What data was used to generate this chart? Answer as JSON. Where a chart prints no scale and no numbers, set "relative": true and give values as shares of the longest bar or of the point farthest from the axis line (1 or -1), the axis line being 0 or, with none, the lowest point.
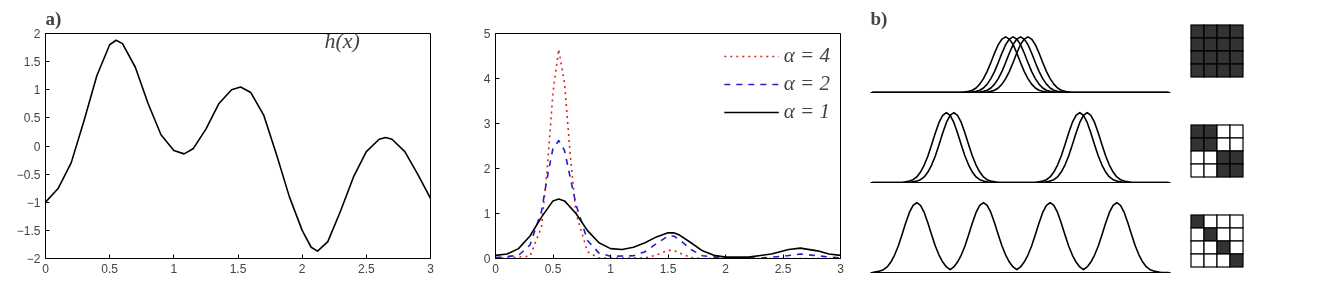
{
  "chart_data": [
    {
      "type": "line",
      "title": "a)",
      "annotations": [
        "h(x)"
      ],
      "xlim": [
        0,
        3
      ],
      "ylim": [
        -2,
        2
      ],
      "xticks": [
        0,
        0.5,
        1,
        1.5,
        2,
        2.5,
        3
      ],
      "yticks": [
        {
          "value": -2,
          "label": "−2"
        },
        {
          "value": -1.5,
          "label": "−1.5"
        },
        {
          "value": -1,
          "label": "−1"
        },
        {
          "value": -0.5,
          "label": "−0.5"
        },
        0,
        0.5,
        1,
        1.5,
        2
      ],
      "grid": false,
      "legend": false,
      "series": [
        {
          "color": "#000000",
          "line_style": "solid",
          "x": [
            0,
            0.1,
            0.2,
            0.3,
            0.4,
            0.5,
            0.55,
            0.6,
            0.7,
            0.8,
            0.9,
            1.0,
            1.08,
            1.15,
            1.25,
            1.35,
            1.45,
            1.52,
            1.6,
            1.7,
            1.8,
            1.9,
            2.0,
            2.07,
            2.12,
            2.2,
            2.3,
            2.4,
            2.5,
            2.6,
            2.65,
            2.7,
            2.8,
            2.9,
            3.0
          ],
          "values": [
            -1,
            -0.75,
            -0.3,
            0.45,
            1.25,
            1.8,
            1.88,
            1.82,
            1.4,
            0.75,
            0.2,
            -0.08,
            -0.14,
            -0.05,
            0.3,
            0.75,
            1.0,
            1.05,
            0.95,
            0.55,
            -0.15,
            -0.9,
            -1.5,
            -1.8,
            -1.87,
            -1.7,
            -1.15,
            -0.55,
            -0.1,
            0.12,
            0.15,
            0.12,
            -0.1,
            -0.5,
            -0.93
          ]
        }
      ]
    },
    {
      "type": "line",
      "xlim": [
        0,
        3
      ],
      "ylim": [
        0,
        5
      ],
      "xticks": [
        0,
        0.5,
        1,
        1.5,
        2,
        2.5,
        3
      ],
      "yticks": [
        0,
        1,
        2,
        3,
        4,
        5
      ],
      "grid": false,
      "legend": "top right",
      "series": [
        {
          "name": "α = 4",
          "color": "#d62728",
          "line_style": "dotted",
          "x": [
            0,
            0.3,
            0.4,
            0.45,
            0.5,
            0.55,
            0.6,
            0.65,
            0.7,
            0.8,
            0.9,
            1.3,
            1.4,
            1.5,
            1.55,
            1.6,
            1.7,
            1.8,
            3
          ],
          "values": [
            0,
            0.05,
            0.7,
            2.0,
            3.7,
            4.65,
            3.9,
            2.3,
            1.0,
            0.15,
            0.01,
            0.01,
            0.08,
            0.18,
            0.18,
            0.12,
            0.02,
            0,
            0
          ]
        },
        {
          "name": "α = 2",
          "color": "#1f1fcc",
          "line_style": "dashed",
          "x": [
            0,
            0.2,
            0.3,
            0.4,
            0.45,
            0.5,
            0.55,
            0.6,
            0.65,
            0.7,
            0.8,
            0.9,
            1.0,
            1.2,
            1.3,
            1.4,
            1.5,
            1.55,
            1.6,
            1.7,
            1.8,
            2.0,
            2.3,
            2.5,
            2.65,
            2.8,
            3
          ],
          "values": [
            0.02,
            0.07,
            0.3,
            1.05,
            1.8,
            2.45,
            2.62,
            2.4,
            1.8,
            1.2,
            0.4,
            0.12,
            0.05,
            0.06,
            0.15,
            0.33,
            0.5,
            0.5,
            0.42,
            0.2,
            0.06,
            0.01,
            0.01,
            0.05,
            0.1,
            0.06,
            0.01
          ]
        },
        {
          "name": "α = 1",
          "color": "#000000",
          "line_style": "solid",
          "x": [
            0,
            0.1,
            0.2,
            0.3,
            0.4,
            0.5,
            0.55,
            0.6,
            0.7,
            0.8,
            0.9,
            1.0,
            1.1,
            1.2,
            1.3,
            1.4,
            1.5,
            1.55,
            1.6,
            1.7,
            1.8,
            1.9,
            2.0,
            2.2,
            2.4,
            2.55,
            2.65,
            2.8,
            2.9,
            3
          ],
          "values": [
            0.07,
            0.1,
            0.22,
            0.5,
            0.92,
            1.28,
            1.32,
            1.28,
            1.0,
            0.62,
            0.35,
            0.22,
            0.2,
            0.25,
            0.35,
            0.48,
            0.57,
            0.57,
            0.52,
            0.35,
            0.17,
            0.07,
            0.03,
            0.03,
            0.1,
            0.2,
            0.23,
            0.17,
            0.1,
            0.07
          ]
        }
      ]
    },
    {
      "type": "line",
      "title": "b)",
      "relative": true,
      "grid": false,
      "legend": false,
      "categories": [
        null,
        null,
        null,
        null,
        null,
        null,
        null,
        null,
        null,
        null,
        null,
        null,
        null,
        null,
        null,
        null,
        null,
        null,
        null,
        null,
        null,
        null,
        null,
        null,
        null,
        null,
        null,
        null,
        null,
        null,
        null,
        null,
        null,
        null,
        null,
        null,
        null,
        null,
        null,
        null,
        null,
        null,
        null,
        null,
        null,
        null,
        null,
        null,
        null,
        null,
        null,
        null,
        null,
        null,
        null,
        null,
        null,
        null,
        null,
        null,
        null,
        null,
        null,
        null,
        null,
        null,
        null,
        null,
        null,
        null,
        null,
        null,
        null,
        null,
        null,
        null,
        null,
        null,
        null,
        null,
        null
      ],
      "series": [
        {
          "color": "#000000",
          "line_style": "solid",
          "values": [
            0,
            0,
            0,
            0,
            0,
            0,
            0,
            0,
            0,
            0,
            0,
            0,
            0,
            0,
            0,
            0,
            0,
            0,
            0,
            0,
            0,
            0,
            0,
            0,
            0,
            0.01,
            0.02,
            0.04,
            0.08,
            0.15,
            0.25,
            0.38,
            0.54,
            0.71,
            0.86,
            0.96,
            1,
            0.96,
            0.86,
            0.71,
            0.54,
            0.38,
            0.25,
            0.15,
            0.08,
            0.04,
            0.02,
            0.01,
            0,
            0,
            0,
            0,
            0,
            0,
            0,
            0,
            0,
            0,
            0,
            0,
            0,
            0,
            0,
            0,
            0,
            0,
            0,
            0,
            0,
            0,
            0,
            0,
            0,
            0,
            0,
            0,
            0,
            0,
            0,
            0,
            0
          ]
        },
        {
          "color": "#000000",
          "line_style": "solid",
          "values": [
            0,
            0,
            0,
            0,
            0,
            0,
            0,
            0,
            0,
            0,
            0,
            0,
            0,
            0,
            0,
            0,
            0,
            0,
            0,
            0,
            0,
            0,
            0,
            0,
            0,
            0,
            0,
            0.01,
            0.02,
            0.04,
            0.08,
            0.15,
            0.25,
            0.38,
            0.54,
            0.71,
            0.86,
            0.96,
            1,
            0.96,
            0.86,
            0.71,
            0.54,
            0.38,
            0.25,
            0.15,
            0.08,
            0.04,
            0.02,
            0.01,
            0,
            0,
            0,
            0,
            0,
            0,
            0,
            0,
            0,
            0,
            0,
            0,
            0,
            0,
            0,
            0,
            0,
            0,
            0,
            0,
            0,
            0,
            0,
            0,
            0,
            0,
            0,
            0,
            0,
            0,
            0
          ]
        },
        {
          "color": "#000000",
          "line_style": "solid",
          "values": [
            0,
            0,
            0,
            0,
            0,
            0,
            0,
            0,
            0,
            0,
            0,
            0,
            0,
            0,
            0,
            0,
            0,
            0,
            0,
            0,
            0,
            0,
            0,
            0,
            0,
            0,
            0,
            0,
            0,
            0.01,
            0.02,
            0.04,
            0.08,
            0.15,
            0.25,
            0.38,
            0.54,
            0.71,
            0.86,
            0.96,
            1,
            0.96,
            0.86,
            0.71,
            0.54,
            0.38,
            0.25,
            0.15,
            0.08,
            0.04,
            0.02,
            0.01,
            0,
            0,
            0,
            0,
            0,
            0,
            0,
            0,
            0,
            0,
            0,
            0,
            0,
            0,
            0,
            0,
            0,
            0,
            0,
            0,
            0,
            0,
            0,
            0,
            0,
            0,
            0,
            0,
            0
          ]
        },
        {
          "color": "#000000",
          "line_style": "solid",
          "values": [
            0,
            0,
            0,
            0,
            0,
            0,
            0,
            0,
            0,
            0,
            0,
            0,
            0,
            0,
            0,
            0,
            0,
            0,
            0,
            0,
            0,
            0,
            0,
            0,
            0,
            0,
            0,
            0,
            0,
            0,
            0,
            0.01,
            0.02,
            0.04,
            0.08,
            0.15,
            0.25,
            0.38,
            0.54,
            0.71,
            0.86,
            0.96,
            1,
            0.96,
            0.86,
            0.71,
            0.54,
            0.38,
            0.25,
            0.15,
            0.08,
            0.04,
            0.02,
            0.01,
            0,
            0,
            0,
            0,
            0,
            0,
            0,
            0,
            0,
            0,
            0,
            0,
            0,
            0,
            0,
            0,
            0,
            0,
            0,
            0,
            0,
            0,
            0,
            0,
            0,
            0,
            0
          ]
        }
      ]
    },
    {
      "type": "line",
      "relative": true,
      "grid": false,
      "legend": false,
      "categories": [
        null,
        null,
        null,
        null,
        null,
        null,
        null,
        null,
        null,
        null,
        null,
        null,
        null,
        null,
        null,
        null,
        null,
        null,
        null,
        null,
        null,
        null,
        null,
        null,
        null,
        null,
        null,
        null,
        null,
        null,
        null,
        null,
        null,
        null,
        null,
        null,
        null,
        null,
        null,
        null,
        null,
        null,
        null,
        null,
        null,
        null,
        null,
        null,
        null,
        null,
        null,
        null,
        null,
        null,
        null,
        null,
        null,
        null,
        null,
        null,
        null,
        null,
        null,
        null,
        null,
        null,
        null,
        null,
        null,
        null,
        null,
        null,
        null,
        null,
        null,
        null,
        null,
        null,
        null,
        null,
        null
      ],
      "series": [
        {
          "color": "#000000",
          "line_style": "solid",
          "values": [
            0,
            0,
            0,
            0,
            0,
            0,
            0,
            0,
            0,
            0.01,
            0.02,
            0.04,
            0.08,
            0.15,
            0.25,
            0.38,
            0.54,
            0.71,
            0.86,
            0.96,
            1,
            0.96,
            0.86,
            0.71,
            0.54,
            0.38,
            0.25,
            0.15,
            0.08,
            0.04,
            0.02,
            0.01,
            0,
            0,
            0,
            0,
            0,
            0,
            0,
            0,
            0,
            0,
            0,
            0,
            0,
            0.01,
            0.02,
            0.04,
            0.08,
            0.15,
            0.25,
            0.38,
            0.54,
            0.71,
            0.86,
            0.96,
            1,
            0.96,
            0.86,
            0.71,
            0.54,
            0.38,
            0.25,
            0.15,
            0.08,
            0.04,
            0.02,
            0.01,
            0,
            0,
            0,
            0,
            0,
            0,
            0,
            0,
            0,
            0,
            0,
            0,
            0
          ]
        },
        {
          "color": "#000000",
          "line_style": "solid",
          "values": [
            0,
            0,
            0,
            0,
            0,
            0,
            0,
            0,
            0,
            0,
            0,
            0.01,
            0.02,
            0.04,
            0.08,
            0.15,
            0.25,
            0.38,
            0.54,
            0.71,
            0.86,
            0.96,
            1,
            0.96,
            0.86,
            0.71,
            0.54,
            0.38,
            0.25,
            0.15,
            0.08,
            0.04,
            0.02,
            0.01,
            0,
            0,
            0,
            0,
            0,
            0,
            0,
            0,
            0,
            0,
            0,
            0,
            0,
            0.01,
            0.02,
            0.04,
            0.08,
            0.15,
            0.25,
            0.38,
            0.54,
            0.71,
            0.86,
            0.96,
            1,
            0.96,
            0.86,
            0.71,
            0.54,
            0.38,
            0.25,
            0.15,
            0.08,
            0.04,
            0.02,
            0.01,
            0,
            0,
            0,
            0,
            0,
            0,
            0,
            0,
            0,
            0,
            0
          ]
        }
      ]
    },
    {
      "type": "line",
      "relative": true,
      "grid": false,
      "legend": false,
      "categories": [
        null,
        null,
        null,
        null,
        null,
        null,
        null,
        null,
        null,
        null,
        null,
        null,
        null,
        null,
        null,
        null,
        null,
        null,
        null,
        null,
        null,
        null,
        null,
        null,
        null,
        null,
        null,
        null,
        null,
        null,
        null,
        null,
        null,
        null,
        null,
        null,
        null,
        null,
        null,
        null,
        null,
        null,
        null,
        null,
        null,
        null,
        null,
        null,
        null,
        null,
        null,
        null,
        null,
        null,
        null,
        null,
        null,
        null,
        null,
        null,
        null,
        null,
        null,
        null,
        null,
        null,
        null,
        null,
        null,
        null,
        null,
        null,
        null,
        null,
        null,
        null,
        null,
        null,
        null,
        null,
        null
      ],
      "series": [
        {
          "color": "#000000",
          "line_style": "solid",
          "values": [
            0,
            0.01,
            0.02,
            0.04,
            0.08,
            0.15,
            0.25,
            0.38,
            0.54,
            0.71,
            0.86,
            0.96,
            1,
            0.96,
            0.86,
            0.71,
            0.54,
            0.38,
            0.25,
            0.15,
            0.08,
            0.04,
            0.08,
            0.15,
            0.25,
            0.38,
            0.54,
            0.71,
            0.86,
            0.96,
            1,
            0.96,
            0.86,
            0.71,
            0.54,
            0.38,
            0.25,
            0.15,
            0.08,
            0.04,
            0.08,
            0.15,
            0.25,
            0.38,
            0.54,
            0.71,
            0.86,
            0.96,
            1,
            0.96,
            0.86,
            0.71,
            0.54,
            0.38,
            0.25,
            0.15,
            0.08,
            0.04,
            0.08,
            0.15,
            0.25,
            0.38,
            0.54,
            0.71,
            0.86,
            0.96,
            1,
            0.96,
            0.86,
            0.71,
            0.54,
            0.38,
            0.25,
            0.15,
            0.08,
            0.04,
            0.02,
            0.01,
            0,
            0,
            0
          ]
        }
      ]
    }
  ]
}
